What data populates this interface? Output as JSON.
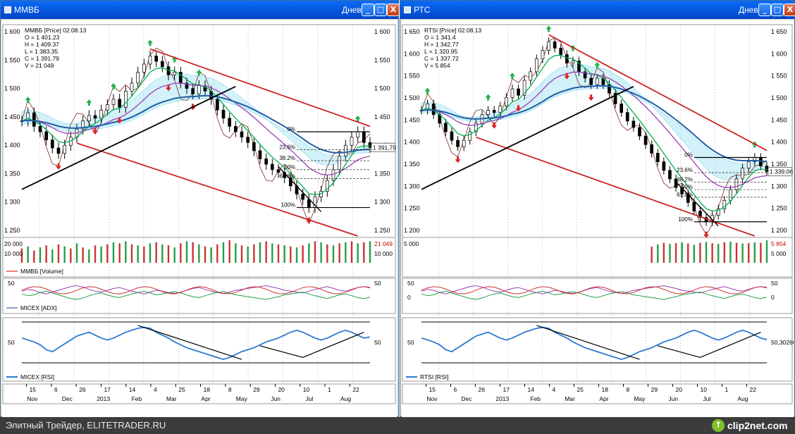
{
  "windows": [
    {
      "title": "ММВБ",
      "period": "Дневной",
      "buttons": {
        "minimize": "_",
        "maximize": "□",
        "close": "X"
      },
      "info": [
        "ММВБ [Price] 02.08.13",
        "O = 1 401.23",
        "H = 1 409.37",
        "L = 1 383.35",
        "C = 1 391.79",
        "V = 21 049"
      ],
      "price_axis": [
        "1 600",
        "1 550",
        "1 500",
        "1 450",
        "1 400",
        "1 350",
        "1 300",
        "1 250"
      ],
      "last_price": "1 391,79",
      "fib_labels": [
        "0%",
        "23.6%",
        "38.2%",
        "50%",
        "61.8%",
        "100%"
      ],
      "volume_axis": [
        "20 000",
        "10 000"
      ],
      "volume_right": [
        "21 049",
        "10 000"
      ],
      "volume_title": "ММВБ [Volume]",
      "adx_axis": [
        "50",
        "50"
      ],
      "adx_title": "MICEX [ADX]",
      "rsi_axis": [
        "50",
        "50"
      ],
      "rsi_title": "MICEX [RSI]",
      "dates_top": [
        "15",
        "6",
        "26",
        "17",
        "14",
        "4",
        "25",
        "18",
        "8",
        "29",
        "20",
        "10",
        "1",
        "22"
      ],
      "dates_bottom": [
        "Nov",
        "Dec",
        "2013",
        "Feb",
        "Mar",
        "Apr",
        "May",
        "Jun",
        "Jul",
        "Aug"
      ]
    },
    {
      "title": "РТС",
      "period": "Дневной",
      "buttons": {
        "minimize": "_",
        "maximize": "□",
        "close": "X"
      },
      "info": [
        "RTSI [Price] 02.08.13",
        "O = 1 341.4",
        "H = 1 342.77",
        "L = 1 320.95",
        "C = 1 337.72",
        "V = 5 854"
      ],
      "price_axis": [
        "1 650",
        "1 600",
        "1 550",
        "1 500",
        "1 450",
        "1 400",
        "1 350",
        "1 300",
        "1 250",
        "1 200"
      ],
      "last_price": "1 339,06",
      "fib_labels": [
        "0%",
        "23.6%",
        "38.2%",
        "50%",
        "61.8%",
        "100%"
      ],
      "volume_axis": [
        "5 000"
      ],
      "volume_right": [
        "5 854",
        "5 000"
      ],
      "volume_title": "",
      "adx_axis": [
        "50",
        "0",
        "50",
        "0"
      ],
      "adx_title": "",
      "rsi_axis": [
        "50",
        "50,302608"
      ],
      "rsi_title": "RTSI [RSI]",
      "dates_top": [
        "15",
        "6",
        "26",
        "17",
        "14",
        "4",
        "25",
        "18",
        "8",
        "29",
        "20",
        "10",
        "1",
        "22"
      ],
      "dates_bottom": [
        "Nov",
        "Dec",
        "2013",
        "Feb",
        "Mar",
        "Apr",
        "May",
        "Jun",
        "Jul",
        "Aug"
      ]
    }
  ],
  "statusbar": {
    "caption": "Элитный Трейдер, ELITETRADER.RU",
    "logo": "clip2net.com"
  },
  "colors": {
    "title_blue": "#0a5ae0",
    "up_arrow": "#22b14c",
    "down_arrow": "#dd2222",
    "channel": "#cc2222",
    "trend": "#000000",
    "ema_fast": "#00b050",
    "ema_slow": "#1f5fa8",
    "cloud": "#7fd7ef",
    "rsi": "#2a7bd0"
  },
  "chart_data": [
    {
      "name": "ММВБ",
      "type": "candlestick",
      "x_range": [
        "2012-10-08",
        "2013-08-05"
      ],
      "y_range": [
        1230,
        1610
      ],
      "closes": [
        1440,
        1455,
        1430,
        1420,
        1405,
        1390,
        1380,
        1395,
        1410,
        1425,
        1440,
        1450,
        1445,
        1460,
        1470,
        1480,
        1465,
        1495,
        1510,
        1530,
        1545,
        1560,
        1550,
        1540,
        1525,
        1530,
        1510,
        1500,
        1490,
        1505,
        1495,
        1480,
        1460,
        1445,
        1430,
        1420,
        1410,
        1400,
        1385,
        1370,
        1360,
        1350,
        1345,
        1335,
        1320,
        1305,
        1295,
        1280,
        1300,
        1310,
        1330,
        1350,
        1375,
        1395,
        1410,
        1420,
        1400,
        1391
      ],
      "adx": [
        38,
        42,
        40,
        35,
        32,
        36,
        40,
        44,
        48,
        50,
        47,
        42,
        38,
        36,
        40,
        44,
        46,
        42,
        38,
        35,
        32,
        36,
        40,
        38,
        35,
        33,
        36,
        40,
        44,
        46,
        42,
        38,
        35,
        33,
        36,
        40,
        42,
        44,
        46,
        48,
        50,
        47,
        44,
        40,
        38,
        36,
        34,
        38,
        42,
        45,
        48,
        44,
        40,
        38,
        42,
        46,
        48,
        45
      ],
      "rsi": [
        52,
        50,
        48,
        45,
        40,
        38,
        42,
        46,
        50,
        54,
        56,
        58,
        55,
        52,
        50,
        52,
        55,
        58,
        60,
        62,
        63,
        62,
        58,
        55,
        52,
        48,
        45,
        42,
        40,
        38,
        36,
        34,
        32,
        30,
        32,
        35,
        38,
        40,
        42,
        45,
        48,
        50,
        52,
        55,
        58,
        60,
        58,
        55,
        52,
        50,
        52,
        55,
        58,
        60,
        58,
        55,
        52,
        53
      ],
      "volume": [
        14000,
        16000,
        12000,
        15000,
        17000,
        13000,
        18000,
        16000,
        14000,
        19000,
        15000,
        13000,
        17000,
        16000,
        18000,
        20000,
        19000,
        21000,
        18000,
        17000,
        16000,
        19000,
        20000,
        18000,
        17000,
        15000,
        19000,
        21000,
        20000,
        18000,
        16000,
        15000,
        18000,
        20000,
        22000,
        19000,
        17000,
        16000,
        18000,
        20000,
        21000,
        19000,
        18000,
        17000,
        16000,
        15000,
        17000,
        19000,
        21000,
        20000,
        18000,
        17000,
        19000,
        20000,
        21000,
        19000,
        20000,
        21049
      ]
    },
    {
      "name": "РТС",
      "type": "candlestick",
      "x_range": [
        "2012-10-08",
        "2013-08-05"
      ],
      "y_range": [
        1190,
        1670
      ],
      "closes": [
        1480,
        1495,
        1470,
        1450,
        1430,
        1410,
        1395,
        1410,
        1430,
        1450,
        1470,
        1480,
        1475,
        1490,
        1510,
        1530,
        1515,
        1550,
        1570,
        1600,
        1620,
        1640,
        1625,
        1610,
        1590,
        1595,
        1570,
        1555,
        1540,
        1555,
        1540,
        1520,
        1495,
        1475,
        1455,
        1440,
        1420,
        1400,
        1380,
        1360,
        1340,
        1320,
        1300,
        1285,
        1265,
        1245,
        1230,
        1220,
        1235,
        1250,
        1270,
        1295,
        1320,
        1345,
        1360,
        1370,
        1350,
        1337
      ],
      "adx": [
        38,
        42,
        40,
        35,
        32,
        36,
        40,
        44,
        48,
        50,
        47,
        42,
        38,
        36,
        40,
        44,
        46,
        42,
        38,
        35,
        32,
        36,
        40,
        38,
        35,
        33,
        36,
        40,
        44,
        46,
        42,
        38,
        35,
        33,
        36,
        40,
        42,
        44,
        46,
        48,
        50,
        47,
        44,
        40,
        38,
        36,
        34,
        38,
        42,
        45,
        48,
        44,
        40,
        38,
        42,
        46,
        48,
        45
      ],
      "rsi": [
        52,
        50,
        48,
        45,
        40,
        38,
        42,
        46,
        50,
        54,
        56,
        58,
        55,
        52,
        50,
        52,
        55,
        58,
        60,
        62,
        63,
        62,
        58,
        55,
        52,
        48,
        45,
        42,
        40,
        38,
        36,
        34,
        32,
        30,
        32,
        35,
        38,
        40,
        42,
        45,
        48,
        50,
        52,
        55,
        58,
        60,
        58,
        55,
        52,
        50,
        52,
        55,
        58,
        60,
        58,
        55,
        52,
        50.3
      ],
      "volume": [
        0,
        0,
        0,
        0,
        0,
        0,
        0,
        0,
        0,
        0,
        0,
        0,
        0,
        0,
        0,
        0,
        0,
        0,
        0,
        0,
        0,
        0,
        0,
        0,
        0,
        0,
        0,
        0,
        0,
        0,
        0,
        0,
        0,
        0,
        0,
        0,
        0,
        0,
        4200,
        4800,
        5200,
        4900,
        5100,
        5300,
        5000,
        4700,
        5200,
        5400,
        5100,
        4900,
        5300,
        5500,
        5200,
        5000,
        5100,
        5300,
        5200,
        5854
      ]
    }
  ]
}
